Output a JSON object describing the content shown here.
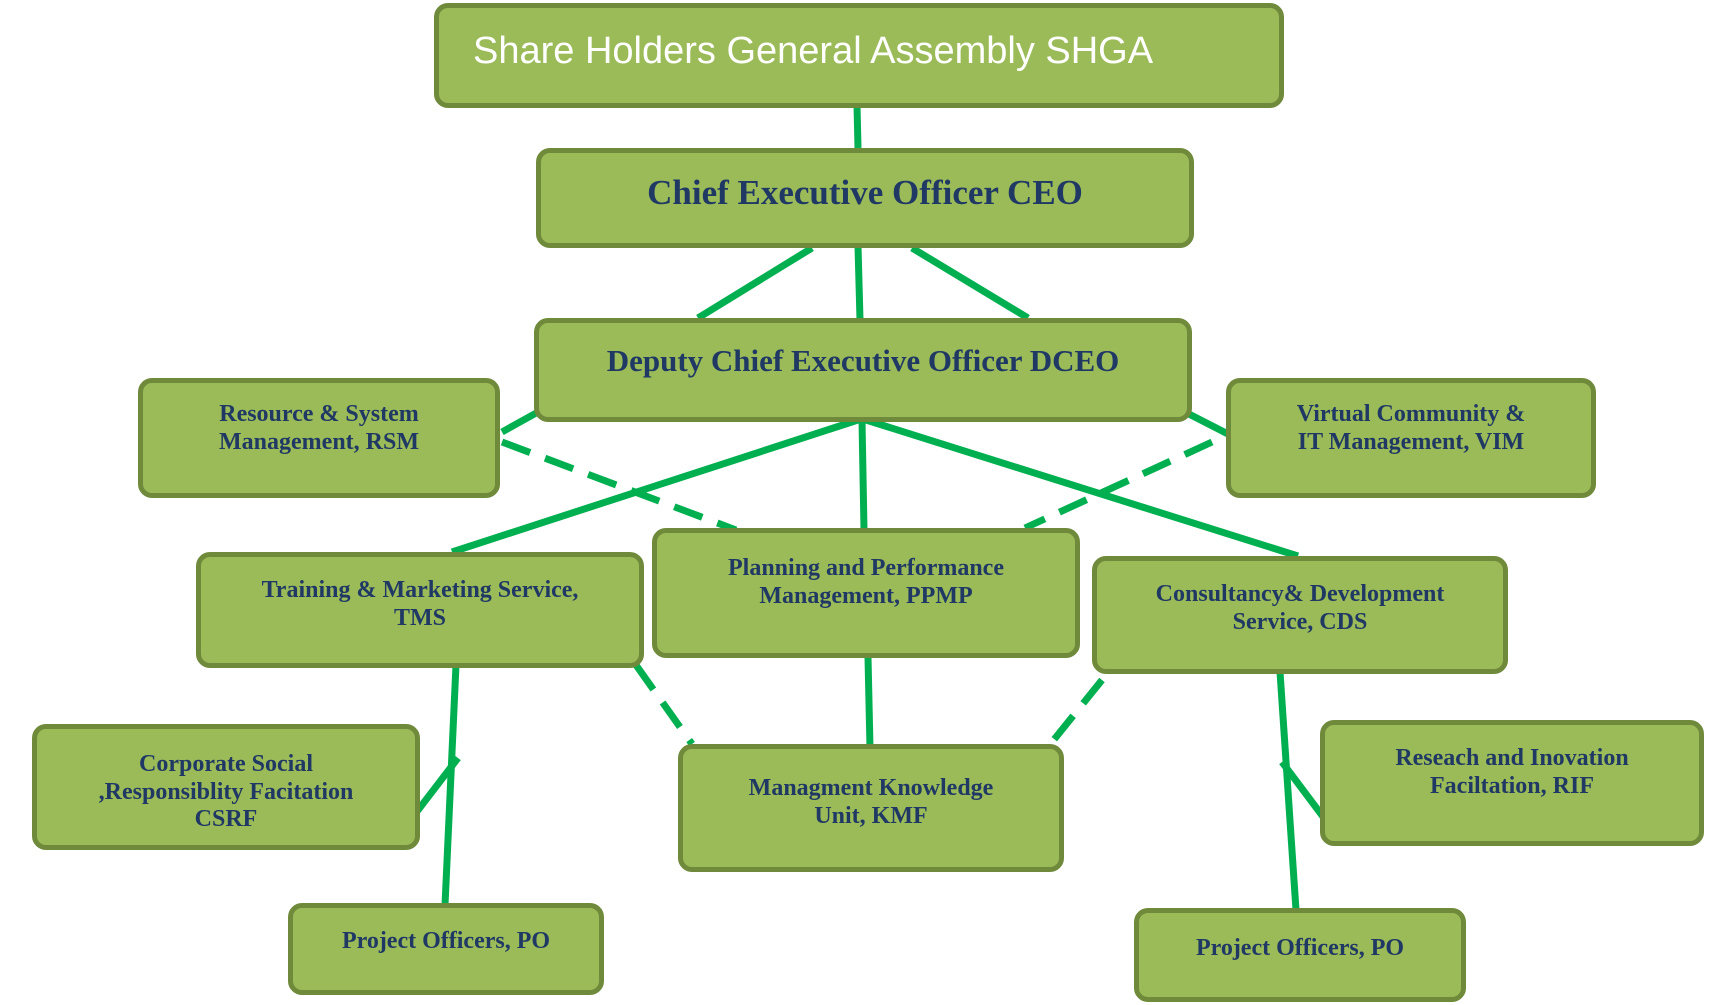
{
  "nodes": {
    "shga": "Share Holders General Assembly SHGA",
    "ceo": "Chief Executive Officer CEO",
    "dceo": "Deputy Chief Executive Officer DCEO",
    "rsm": "Resource & System\nManagement, RSM",
    "vim": "Virtual Community &\n IT Management, VIM",
    "tms": "Training & Marketing Service,\nTMS",
    "ppmp": "Planning and Performance\nManagement, PPMP",
    "cds": "Consultancy& Development\nService, CDS",
    "csrf": "Corporate Social\n,Responsiblity Facitation\nCSRF",
    "kmf": "Managment  Knowledge\nUnit, KMF",
    "rif": "Reseach and Inovation\nFaciltation, RIF",
    "po_left": "Project Officers, PO",
    "po_right": "Project Officers, PO"
  },
  "colors": {
    "box_fill": "#9bbb59",
    "box_border": "#6f8a3a",
    "text": "#1f3864",
    "connector": "#00b050"
  }
}
